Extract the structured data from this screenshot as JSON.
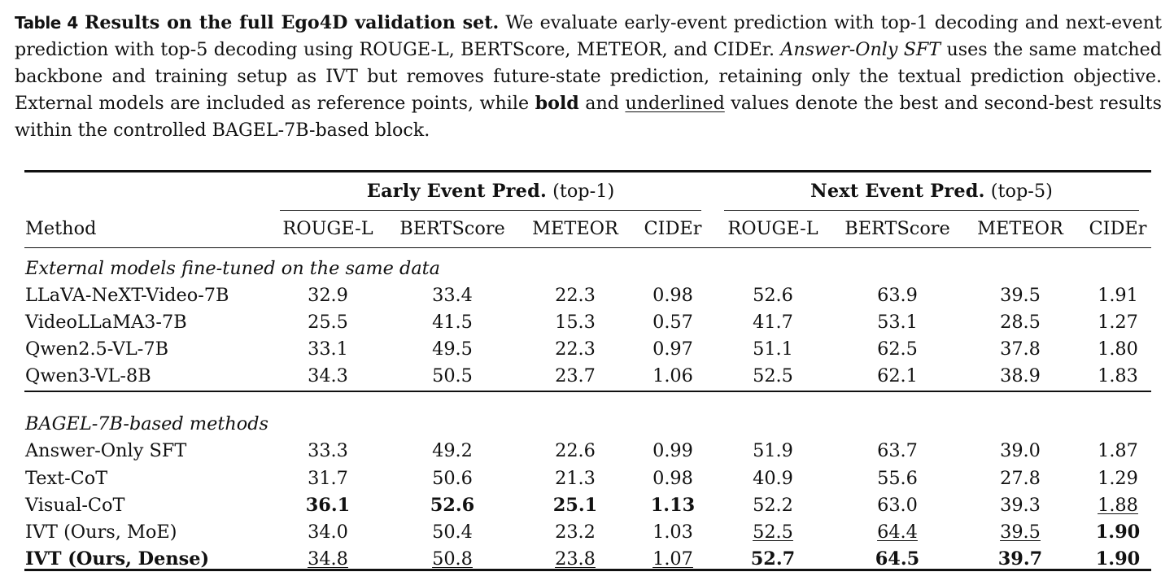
{
  "caption": {
    "label": "Table 4",
    "title": "Results on the full Ego4D validation set.",
    "part1": "We evaluate early-event prediction with top-1 decoding and next-event prediction with top-5 decoding using ROUGE-L, BERTScore, METEOR, and CIDEr.",
    "term_italic": "Answer-Only SFT",
    "part2": "uses the same matched backbone and training setup as IVT but removes future-state prediction, retaining only the textual prediction objective. External models are included as reference points, while",
    "bold_word": "bold",
    "and_word": "and",
    "underline_word": "underlined",
    "part3": "values denote the best and second-best results within the controlled BAGEL-7B-based block."
  },
  "table": {
    "method_header": "Method",
    "groups": [
      {
        "bold": "Early Event Pred.",
        "suffix": "(top-1)"
      },
      {
        "bold": "Next Event Pred.",
        "suffix": "(top-5)"
      }
    ],
    "metrics": [
      "ROUGE-L",
      "BERTScore",
      "METEOR",
      "CIDEr",
      "ROUGE-L",
      "BERTScore",
      "METEOR",
      "CIDEr"
    ],
    "sections": [
      {
        "title": "External models fine-tuned on the same data",
        "rows": [
          {
            "method": "LLaVA-NeXT-Video-7B",
            "bold": false,
            "values": [
              "32.9",
              "33.4",
              "22.3",
              "0.98",
              "52.6",
              "63.9",
              "39.5",
              "1.91"
            ],
            "styles": [
              "",
              "",
              "",
              "",
              "",
              "",
              "",
              ""
            ]
          },
          {
            "method": "VideoLLaMA3-7B",
            "bold": false,
            "values": [
              "25.5",
              "41.5",
              "15.3",
              "0.57",
              "41.7",
              "53.1",
              "28.5",
              "1.27"
            ],
            "styles": [
              "",
              "",
              "",
              "",
              "",
              "",
              "",
              ""
            ]
          },
          {
            "method": "Qwen2.5-VL-7B",
            "bold": false,
            "values": [
              "33.1",
              "49.5",
              "22.3",
              "0.97",
              "51.1",
              "62.5",
              "37.8",
              "1.80"
            ],
            "styles": [
              "",
              "",
              "",
              "",
              "",
              "",
              "",
              ""
            ]
          },
          {
            "method": "Qwen3-VL-8B",
            "bold": false,
            "values": [
              "34.3",
              "50.5",
              "23.7",
              "1.06",
              "52.5",
              "62.1",
              "38.9",
              "1.83"
            ],
            "styles": [
              "",
              "",
              "",
              "",
              "",
              "",
              "",
              ""
            ]
          }
        ]
      },
      {
        "title": "BAGEL-7B-based methods",
        "rows": [
          {
            "method": "Answer-Only SFT",
            "bold": false,
            "values": [
              "33.3",
              "49.2",
              "22.6",
              "0.99",
              "51.9",
              "63.7",
              "39.0",
              "1.87"
            ],
            "styles": [
              "",
              "",
              "",
              "",
              "",
              "",
              "",
              ""
            ]
          },
          {
            "method": "Text-CoT",
            "bold": false,
            "values": [
              "31.7",
              "50.6",
              "21.3",
              "0.98",
              "40.9",
              "55.6",
              "27.8",
              "1.29"
            ],
            "styles": [
              "",
              "",
              "",
              "",
              "",
              "",
              "",
              ""
            ]
          },
          {
            "method": "Visual-CoT",
            "bold": false,
            "values": [
              "36.1",
              "52.6",
              "25.1",
              "1.13",
              "52.2",
              "63.0",
              "39.3",
              "1.88"
            ],
            "styles": [
              "b",
              "b",
              "b",
              "b",
              "",
              "",
              "",
              "u"
            ]
          },
          {
            "method": "IVT (Ours, MoE)",
            "bold": false,
            "values": [
              "34.0",
              "50.4",
              "23.2",
              "1.03",
              "52.5",
              "64.4",
              "39.5",
              "1.90"
            ],
            "styles": [
              "",
              "",
              "",
              "",
              "u",
              "u",
              "u",
              "b"
            ]
          },
          {
            "method": "IVT (Ours, Dense)",
            "bold": true,
            "values": [
              "34.8",
              "50.8",
              "23.8",
              "1.07",
              "52.7",
              "64.5",
              "39.7",
              "1.90"
            ],
            "styles": [
              "u",
              "u",
              "u",
              "u",
              "b",
              "b",
              "b",
              "b"
            ]
          }
        ]
      }
    ]
  }
}
